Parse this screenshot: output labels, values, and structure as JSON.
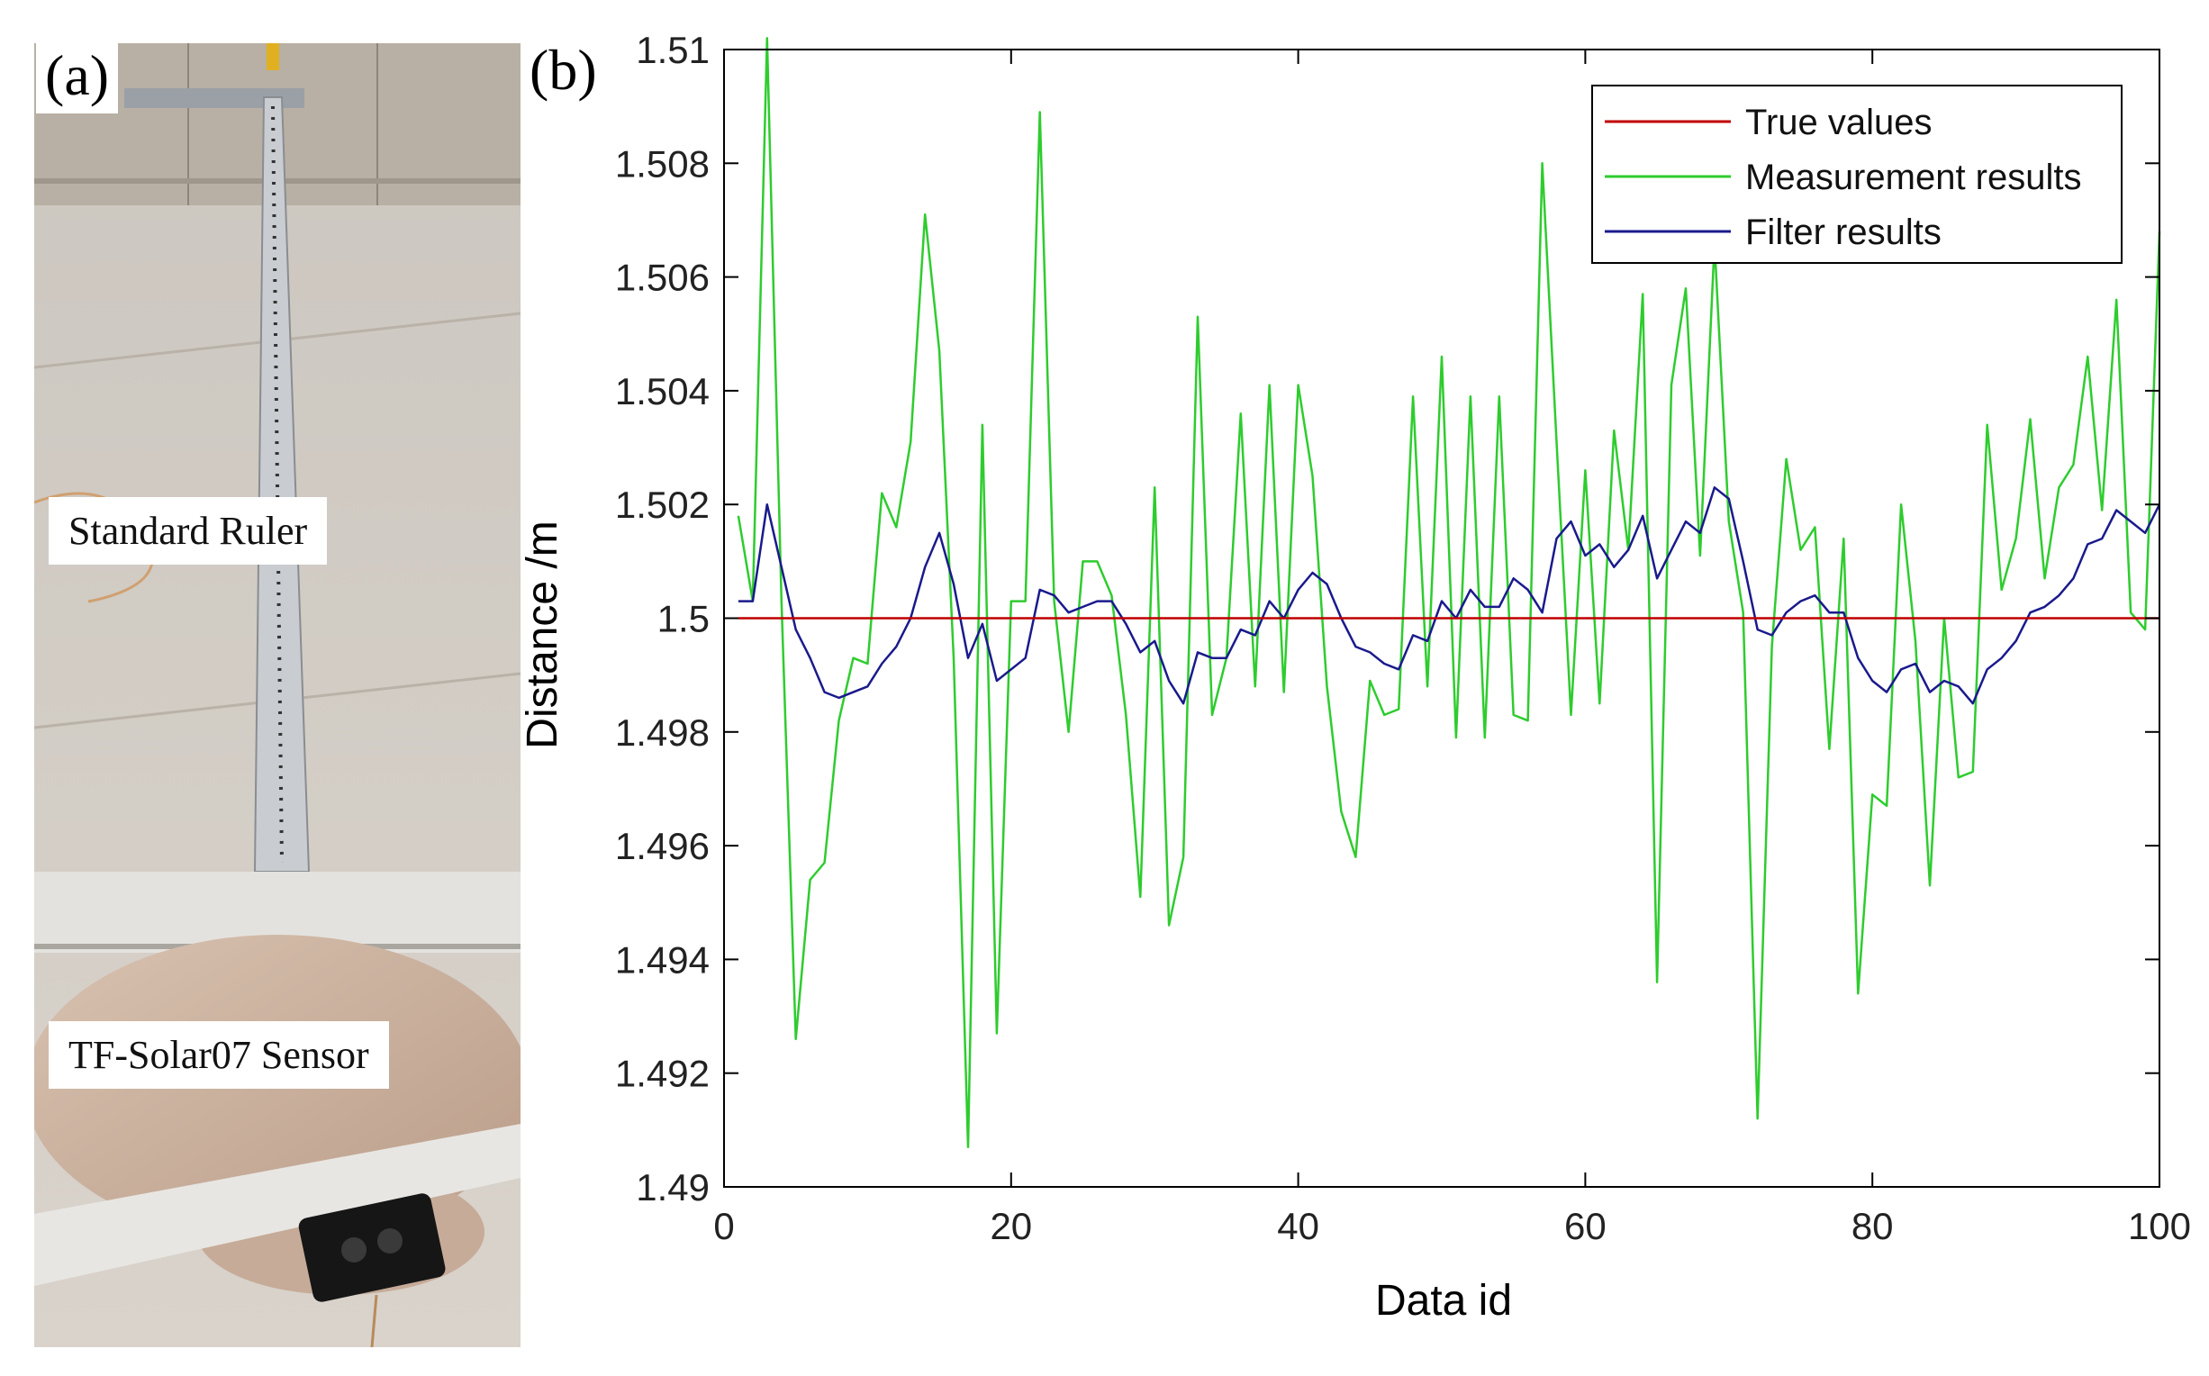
{
  "panel_a": {
    "label": "(a)",
    "captions": {
      "ruler": "Standard Ruler",
      "sensor": "TF-Solar07 Sensor"
    }
  },
  "panel_b": {
    "label": "(b)"
  },
  "colors": {
    "true_values": "#c00000",
    "measurement": "#2ecc2e",
    "filter": "#1a1a8c",
    "axis": "#000000"
  },
  "chart_data": {
    "type": "line",
    "title": "",
    "xlabel": "Data id",
    "ylabel": "Distance /m",
    "xlim": [
      0,
      100
    ],
    "ylim": [
      1.49,
      1.51
    ],
    "x_ticks": [
      0,
      20,
      40,
      60,
      80,
      100
    ],
    "x_tick_labels": [
      "0",
      "20",
      "40",
      "60",
      "80",
      "100"
    ],
    "y_ticks": [
      1.49,
      1.492,
      1.494,
      1.496,
      1.498,
      1.5,
      1.502,
      1.504,
      1.506,
      1.508,
      1.51
    ],
    "y_tick_labels": [
      "1.49",
      "1.492",
      "1.494",
      "1.496",
      "1.498",
      "1.5",
      "1.502",
      "1.504",
      "1.506",
      "1.508",
      "1.51"
    ],
    "grid": false,
    "legend_position": "top-right",
    "x": [
      1,
      2,
      3,
      4,
      5,
      6,
      7,
      8,
      9,
      10,
      11,
      12,
      13,
      14,
      15,
      16,
      17,
      18,
      19,
      20,
      21,
      22,
      23,
      24,
      25,
      26,
      27,
      28,
      29,
      30,
      31,
      32,
      33,
      34,
      35,
      36,
      37,
      38,
      39,
      40,
      41,
      42,
      43,
      44,
      45,
      46,
      47,
      48,
      49,
      50,
      51,
      52,
      53,
      54,
      55,
      56,
      57,
      58,
      59,
      60,
      61,
      62,
      63,
      64,
      65,
      66,
      67,
      68,
      69,
      70,
      71,
      72,
      73,
      74,
      75,
      76,
      77,
      78,
      79,
      80,
      81,
      82,
      83,
      84,
      85,
      86,
      87,
      88,
      89,
      90,
      91,
      92,
      93,
      94,
      95,
      96,
      97,
      98,
      99,
      100
    ],
    "series": [
      {
        "name": "True values",
        "values": [
          1.5,
          1.5,
          1.5,
          1.5,
          1.5,
          1.5,
          1.5,
          1.5,
          1.5,
          1.5,
          1.5,
          1.5,
          1.5,
          1.5,
          1.5,
          1.5,
          1.5,
          1.5,
          1.5,
          1.5,
          1.5,
          1.5,
          1.5,
          1.5,
          1.5,
          1.5,
          1.5,
          1.5,
          1.5,
          1.5,
          1.5,
          1.5,
          1.5,
          1.5,
          1.5,
          1.5,
          1.5,
          1.5,
          1.5,
          1.5,
          1.5,
          1.5,
          1.5,
          1.5,
          1.5,
          1.5,
          1.5,
          1.5,
          1.5,
          1.5,
          1.5,
          1.5,
          1.5,
          1.5,
          1.5,
          1.5,
          1.5,
          1.5,
          1.5,
          1.5,
          1.5,
          1.5,
          1.5,
          1.5,
          1.5,
          1.5,
          1.5,
          1.5,
          1.5,
          1.5,
          1.5,
          1.5,
          1.5,
          1.5,
          1.5,
          1.5,
          1.5,
          1.5,
          1.5,
          1.5,
          1.5,
          1.5,
          1.5,
          1.5,
          1.5,
          1.5,
          1.5,
          1.5,
          1.5,
          1.5,
          1.5,
          1.5,
          1.5,
          1.5,
          1.5,
          1.5,
          1.5,
          1.5,
          1.5,
          1.5
        ]
      },
      {
        "name": "Measurement results",
        "values": [
          1.5018,
          1.5003,
          1.5102,
          1.5003,
          1.4926,
          1.4954,
          1.4957,
          1.4982,
          1.4993,
          1.4992,
          1.5022,
          1.5016,
          1.5031,
          1.5071,
          1.5047,
          1.4993,
          1.4907,
          1.5034,
          1.4927,
          1.5003,
          1.5003,
          1.5089,
          1.5003,
          1.498,
          1.501,
          1.501,
          1.5004,
          1.4983,
          1.4951,
          1.5023,
          1.4946,
          1.4958,
          1.5053,
          1.4983,
          1.4993,
          1.5036,
          1.4988,
          1.5041,
          1.4987,
          1.5041,
          1.5025,
          1.4988,
          1.4966,
          1.4958,
          1.4989,
          1.4983,
          1.4984,
          1.5039,
          1.4988,
          1.5046,
          1.4979,
          1.5039,
          1.4979,
          1.5039,
          1.4983,
          1.4982,
          1.508,
          1.5031,
          1.4983,
          1.5026,
          1.4985,
          1.5033,
          1.5012,
          1.5057,
          1.4936,
          1.5041,
          1.5058,
          1.5011,
          1.5066,
          1.5017,
          1.5001,
          1.4912,
          1.4995,
          1.5028,
          1.5012,
          1.5016,
          1.4977,
          1.5014,
          1.4934,
          1.4969,
          1.4967,
          1.502,
          1.4996,
          1.4953,
          1.5,
          1.4972,
          1.4973,
          1.5034,
          1.5005,
          1.5014,
          1.5035,
          1.5007,
          1.5023,
          1.5027,
          1.5046,
          1.5019,
          1.5056,
          1.5001,
          1.4998,
          1.5068
        ]
      },
      {
        "name": "Filter results",
        "values": [
          1.5003,
          1.5003,
          1.502,
          1.5009,
          1.4998,
          1.4993,
          1.4987,
          1.4986,
          1.4987,
          1.4988,
          1.4992,
          1.4995,
          1.5,
          1.5009,
          1.5015,
          1.5006,
          1.4993,
          1.4999,
          1.4989,
          1.4991,
          1.4993,
          1.5005,
          1.5004,
          1.5001,
          1.5002,
          1.5003,
          1.5003,
          1.4999,
          1.4994,
          1.4996,
          1.4989,
          1.4985,
          1.4994,
          1.4993,
          1.4993,
          1.4998,
          1.4997,
          1.5003,
          1.5,
          1.5005,
          1.5008,
          1.5006,
          1.5,
          1.4995,
          1.4994,
          1.4992,
          1.4991,
          1.4997,
          1.4996,
          1.5003,
          1.5,
          1.5005,
          1.5002,
          1.5002,
          1.5007,
          1.5005,
          1.5001,
          1.5014,
          1.5017,
          1.5011,
          1.5013,
          1.5009,
          1.5012,
          1.5018,
          1.5007,
          1.5012,
          1.5017,
          1.5015,
          1.5023,
          1.5021,
          1.501,
          1.4998,
          1.4997,
          1.5001,
          1.5003,
          1.5004,
          1.5001,
          1.5001,
          1.4993,
          1.4989,
          1.4987,
          1.4991,
          1.4992,
          1.4987,
          1.4989,
          1.4988,
          1.4985,
          1.4991,
          1.4993,
          1.4996,
          1.5001,
          1.5002,
          1.5004,
          1.5007,
          1.5013,
          1.5014,
          1.5019,
          1.5017,
          1.5015,
          1.502
        ]
      }
    ]
  }
}
